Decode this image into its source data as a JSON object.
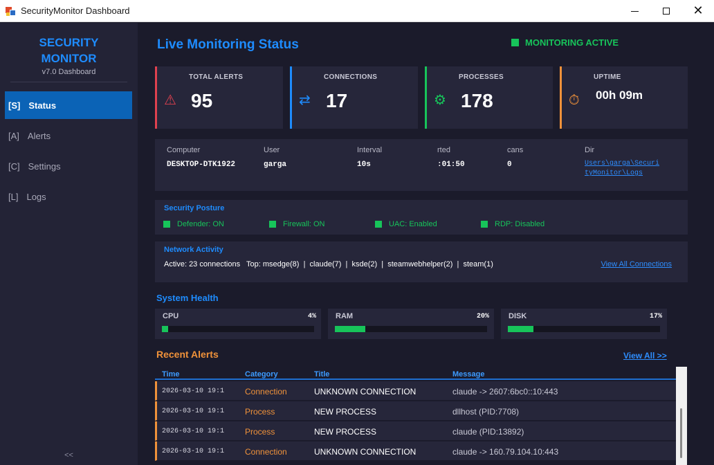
{
  "window": {
    "title": "SecurityMonitor Dashboard"
  },
  "sidebar": {
    "brand_line1": "SECURITY",
    "brand_line2": "MONITOR",
    "version": "v7.0 Dashboard",
    "items": [
      {
        "key": "[S]",
        "label": "Status",
        "active": true
      },
      {
        "key": "[A]",
        "label": "Alerts",
        "active": false
      },
      {
        "key": "[C]",
        "label": "Settings",
        "active": false
      },
      {
        "key": "[L]",
        "label": "Logs",
        "active": false
      }
    ],
    "collapse_label": "<<"
  },
  "header": {
    "title": "Live Monitoring Status",
    "status": "MONITORING ACTIVE",
    "status_color": "#17c45a"
  },
  "cards": [
    {
      "label": "TOTAL ALERTS",
      "value": "95",
      "icon": "warning-icon",
      "color": "#e0414f"
    },
    {
      "label": "CONNECTIONS",
      "value": "17",
      "icon": "swap-arrows-icon",
      "color": "#1e8cff"
    },
    {
      "label": "PROCESSES",
      "value": "178",
      "icon": "gear-icon",
      "color": "#17c45a"
    },
    {
      "label": "UPTIME",
      "value": "00h 09m",
      "icon": "stopwatch-icon",
      "color": "#f0923a"
    }
  ],
  "system_info": {
    "computer_label": "Computer",
    "computer": "DESKTOP-DTK1922",
    "user_label": "User",
    "user": "garga",
    "interval_label": "Interval",
    "interval": "10s",
    "started_label": "rted",
    "started": ":01:50",
    "scans_label": "cans",
    "scans": "0",
    "dir_label": "Dir",
    "dir": "Users\\garga\\SecurityMonitor\\Logs"
  },
  "posture": {
    "title": "Security Posture",
    "items": [
      "Defender: ON",
      "Firewall: ON",
      "UAC: Enabled",
      "RDP: Disabled"
    ]
  },
  "network": {
    "title": "Network Activity",
    "summary": "Active: 23 connections   Top: msedge(8)  |  claude(7)  |  ksde(2)  |  steamwebhelper(2)  |  steam(1)",
    "link": "View All Connections"
  },
  "health": {
    "title": "System Health",
    "items": [
      {
        "label": "CPU",
        "pct_text": "4%",
        "value": 0.04
      },
      {
        "label": "RAM",
        "pct_text": "20%",
        "value": 0.2
      },
      {
        "label": "DISK",
        "pct_text": "17%",
        "value": 0.17
      }
    ]
  },
  "alerts": {
    "title": "Recent Alerts",
    "view_all": "View All >>",
    "columns": [
      "Time",
      "Category",
      "Title",
      "Message"
    ],
    "rows": [
      {
        "time": "2026-03-10 19:1",
        "category": "Connection",
        "title": "UNKNOWN CONNECTION",
        "message": "claude -> 2607:6bc0::10:443"
      },
      {
        "time": "2026-03-10 19:1",
        "category": "Process",
        "title": "NEW PROCESS",
        "message": "dllhost (PID:7708)"
      },
      {
        "time": "2026-03-10 19:1",
        "category": "Process",
        "title": "NEW PROCESS",
        "message": "claude (PID:13892)"
      },
      {
        "time": "2026-03-10 19:1",
        "category": "Connection",
        "title": "UNKNOWN CONNECTION",
        "message": "claude -> 160.79.104.10:443"
      }
    ]
  }
}
